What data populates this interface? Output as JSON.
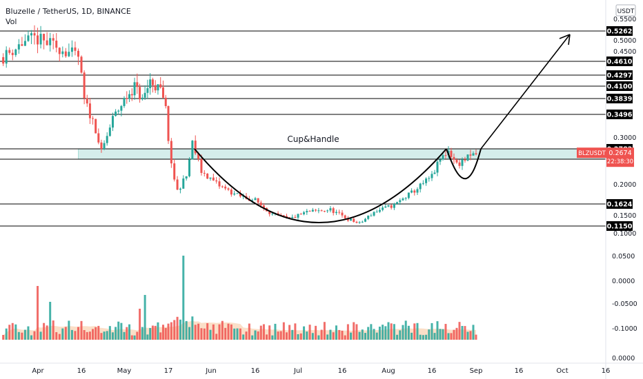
{
  "header": {
    "title": "Bluzelle / TetherUS, 1D, BINANCE",
    "indicator": "Vol"
  },
  "currency_button": "USDT",
  "annotation": "Cup&Handle",
  "price_tag": {
    "symbol": "BLZUSDT",
    "price": "0.2674",
    "countdown": "22:38:30"
  },
  "colors": {
    "up": "#26a69a",
    "down": "#ef5350",
    "zone": "#b2dfdb",
    "label_bg": "#000000",
    "price_tag": "#ef5350",
    "vol_ma": "#f7c49a"
  },
  "chart_data": {
    "type": "candlestick",
    "price_axis_ticks": [
      "0.5500",
      "0.5000",
      "0.4500",
      "0.3000",
      "0.2000",
      "0.1500",
      "0.1000"
    ],
    "volume_axis_ticks": [
      "0.0500",
      "0.0000",
      "-0.0500",
      "-0.1000",
      "0.0000"
    ],
    "x_tick_labels": [
      "Apr",
      "16",
      "May",
      "17",
      "Jun",
      "16",
      "Jul",
      "16",
      "Aug",
      "16",
      "Sep",
      "16",
      "Oct",
      "16"
    ],
    "levels": [
      "0.5262",
      "0.4610",
      "0.4297",
      "0.4100",
      "0.3839",
      "0.3496",
      "0.2782",
      "0.2557",
      "0.1624",
      "0.1150"
    ],
    "zone": [
      0.2557,
      0.2782
    ],
    "last_price": 0.2674
  }
}
